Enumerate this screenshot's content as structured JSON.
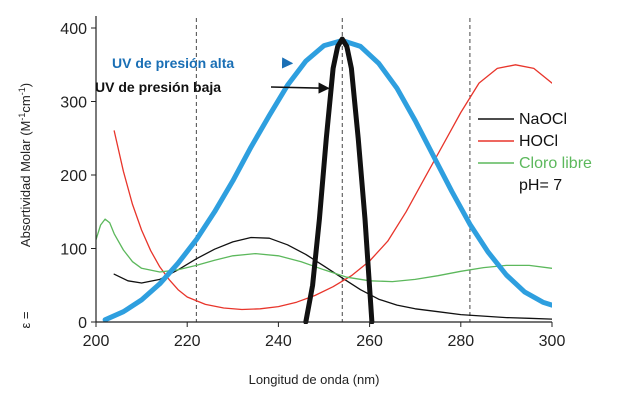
{
  "chart_data": {
    "type": "line",
    "xlabel": "Longitud de onda  (nm)",
    "ylabel_prefix": "ε =",
    "ylabel": "Absortividad Molar (M",
    "ylabel_sup1": "-1",
    "ylabel_mid": "cm",
    "ylabel_sup2": "-1",
    "ylabel_end": ")",
    "xlim": [
      200,
      300
    ],
    "ylim": [
      0,
      400
    ],
    "xticks": [
      "200",
      "220",
      "240",
      "260",
      "280",
      "300"
    ],
    "yticks": [
      "0",
      "100",
      "200",
      "300",
      "400"
    ],
    "vlines": [
      222,
      254,
      282
    ],
    "series": [
      {
        "name": "NaOCl",
        "color": "#111111",
        "width": 1.3,
        "x": [
          204,
          207,
          210,
          214,
          218,
          222,
          226,
          230,
          234,
          238,
          242,
          246,
          250,
          254,
          258,
          262,
          266,
          270,
          275,
          280,
          285,
          290,
          295,
          300
        ],
        "y": [
          65,
          56,
          53,
          58,
          71,
          86,
          99,
          109,
          115,
          114,
          105,
          92,
          76,
          60,
          44,
          31,
          23,
          18,
          14,
          10,
          8,
          6,
          5,
          4
        ]
      },
      {
        "name": "HOCl",
        "color": "#e8352b",
        "width": 1.3,
        "x": [
          204,
          206,
          208,
          210,
          212,
          214,
          216,
          218,
          220,
          224,
          228,
          232,
          236,
          240,
          244,
          248,
          252,
          256,
          260,
          264,
          268,
          272,
          276,
          280,
          284,
          288,
          292,
          296,
          300
        ],
        "y": [
          260,
          205,
          160,
          125,
          97,
          75,
          58,
          44,
          34,
          24,
          19,
          17,
          18,
          21,
          27,
          36,
          48,
          63,
          83,
          110,
          150,
          195,
          240,
          285,
          325,
          345,
          350,
          345,
          325
        ]
      },
      {
        "name": "Cloro libre",
        "color": "#5cb85c",
        "width": 1.3,
        "x": [
          200,
          201,
          202,
          203,
          204,
          206,
          208,
          210,
          214,
          218,
          222,
          226,
          230,
          235,
          240,
          245,
          250,
          255,
          260,
          265,
          270,
          275,
          280,
          285,
          290,
          295,
          300
        ],
        "y": [
          112,
          132,
          140,
          135,
          120,
          98,
          82,
          73,
          68,
          71,
          77,
          84,
          90,
          93,
          90,
          82,
          71,
          61,
          56,
          55,
          58,
          63,
          69,
          74,
          77,
          77,
          73
        ]
      },
      {
        "name": "UV de presión alta",
        "color": "#2e9fdf",
        "width": 5,
        "x": [
          202,
          206,
          210,
          214,
          218,
          222,
          226,
          230,
          234,
          238,
          242,
          246,
          250,
          254,
          258,
          262,
          266,
          270,
          274,
          278,
          282,
          286,
          290,
          294,
          298,
          300
        ],
        "y": [
          3,
          14,
          30,
          52,
          80,
          112,
          150,
          192,
          238,
          281,
          322,
          355,
          376,
          383,
          375,
          352,
          318,
          274,
          226,
          178,
          133,
          95,
          64,
          41,
          27,
          23
        ]
      },
      {
        "name": "UV de presión baja",
        "color": "#111111",
        "width": 5,
        "x": [
          246,
          247.5,
          249,
          250.5,
          252,
          253,
          254,
          255,
          256,
          257.5,
          259,
          260.5
        ],
        "y": [
          0,
          50,
          140,
          250,
          345,
          375,
          385,
          375,
          345,
          250,
          140,
          0
        ]
      }
    ],
    "legend": {
      "items": [
        {
          "label": "NaOCl",
          "color": "#111111"
        },
        {
          "label": "HOCl",
          "color": "#e8352b"
        },
        {
          "label": "Cloro libre",
          "color": "#5cb85c"
        }
      ],
      "note": "pH= 7",
      "placement": "right"
    },
    "annotations": [
      {
        "text": "UV de presión alta",
        "color": "#1a6fb5",
        "arrow_to": [
          243,
          352
        ]
      },
      {
        "text": "UV de presión baja",
        "color": "#111111",
        "arrow_to": [
          251,
          318
        ]
      }
    ]
  }
}
